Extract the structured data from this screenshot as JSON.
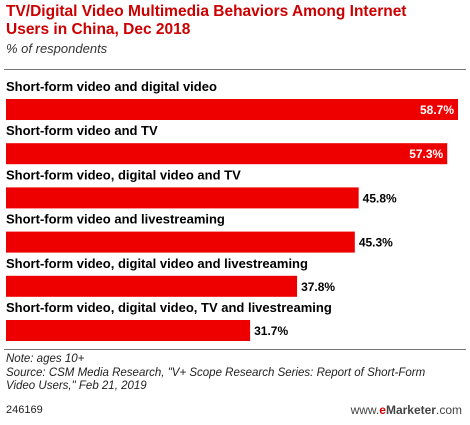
{
  "header": {
    "title": "TV/Digital Video Multimedia Behaviors Among Internet Users in China, Dec 2018",
    "subtitle": "% of respondents"
  },
  "colors": {
    "bar": "#ee0000",
    "title": "#cc0000"
  },
  "chart_data": {
    "type": "bar",
    "orientation": "horizontal",
    "categories": [
      "Short-form video and digital video",
      "Short-form video and TV",
      "Short-form video, digital video and TV",
      "Short-form video and livestreaming",
      "Short-form video, digital video and livestreaming",
      "Short-form video, digital video, TV and livestreaming"
    ],
    "values": [
      58.7,
      57.3,
      45.8,
      45.3,
      37.8,
      31.7
    ],
    "labels": [
      "58.7%",
      "57.3%",
      "45.8%",
      "45.3%",
      "37.8%",
      "31.7%"
    ],
    "title": "TV/Digital Video Multimedia Behaviors Among Internet Users in China, Dec 2018",
    "subtitle": "% of respondents",
    "xlim": [
      0,
      58.7
    ],
    "grid": false,
    "legend": "none"
  },
  "footer": {
    "note": "Note: ages 10+",
    "source": "Source: CSM Media Research, \"V+ Scope Research Series: Report of Short-Form Video Users,\" Feb 21, 2019",
    "id": "246169",
    "brand_prefix": "www.",
    "brand_e": "e",
    "brand_name": "Marketer",
    "brand_suffix": ".com"
  }
}
